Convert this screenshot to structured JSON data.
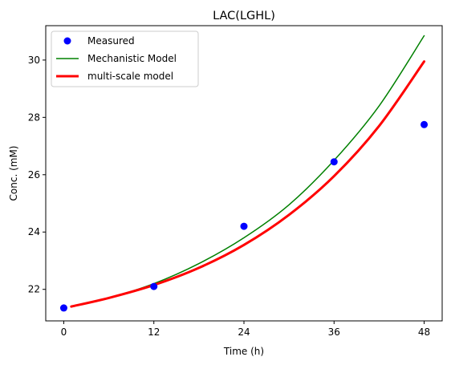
{
  "chart_data": {
    "type": "line",
    "title": "LAC(LGHL)",
    "xlabel": "Time (h)",
    "ylabel": "Conc. (mM)",
    "xlim": [
      -2.4,
      50.4
    ],
    "ylim": [
      20.9,
      31.2
    ],
    "xticks": [
      0,
      12,
      24,
      36,
      48
    ],
    "yticks": [
      22,
      24,
      26,
      28,
      30
    ],
    "grid": false,
    "legend_position": "top-left",
    "series": [
      {
        "name": "Measured",
        "kind": "scatter",
        "color": "#0000ff",
        "x": [
          0,
          12,
          24,
          36,
          48
        ],
        "y": [
          21.35,
          22.1,
          24.2,
          26.45,
          27.75
        ]
      },
      {
        "name": "Mechanistic Model",
        "kind": "line",
        "color": "#008000",
        "x": [
          1,
          6,
          12,
          18,
          24,
          30,
          36,
          42,
          48
        ],
        "y": [
          21.4,
          21.7,
          22.2,
          22.9,
          23.8,
          24.95,
          26.5,
          28.4,
          30.85
        ]
      },
      {
        "name": "multi-scale model",
        "kind": "line",
        "color": "#ff0000",
        "x": [
          1,
          6,
          12,
          18,
          24,
          30,
          36,
          42,
          48
        ],
        "y": [
          21.4,
          21.7,
          22.15,
          22.75,
          23.55,
          24.6,
          25.95,
          27.7,
          29.95
        ]
      }
    ]
  }
}
